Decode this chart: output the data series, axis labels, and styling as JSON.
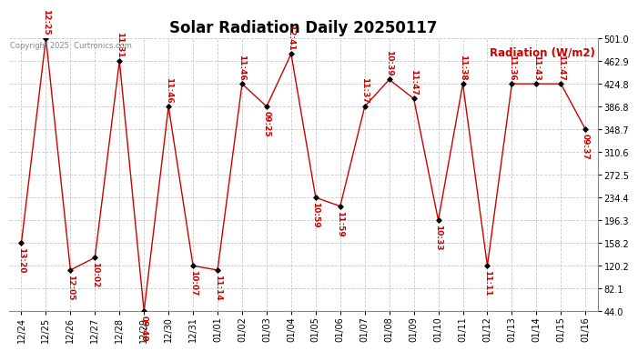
{
  "title": "Solar Radiation Daily 20250117",
  "copyright": "Copyright 2025  Curtronics.com",
  "ylabel": "Radiation (W/m2)",
  "ylim": [
    44.0,
    501.0
  ],
  "yticks": [
    44.0,
    82.1,
    120.2,
    158.2,
    196.3,
    234.4,
    272.5,
    310.6,
    348.7,
    386.8,
    424.8,
    462.9,
    501.0
  ],
  "background_color": "#ffffff",
  "grid_color": "#bbbbbb",
  "line_color": "#cc0000",
  "point_color": "#000000",
  "label_color": "#cc0000",
  "dates": [
    "12/24",
    "12/25",
    "12/26",
    "12/27",
    "12/28",
    "12/29",
    "12/30",
    "12/31",
    "01/01",
    "01/02",
    "01/03",
    "01/04",
    "01/05",
    "01/06",
    "01/07",
    "01/08",
    "01/09",
    "01/10",
    "01/11",
    "01/12",
    "01/13",
    "01/14",
    "01/15",
    "01/16"
  ],
  "values": [
    158.2,
    501.0,
    113.0,
    134.0,
    462.9,
    44.0,
    386.8,
    120.2,
    113.0,
    424.8,
    386.8,
    475.0,
    234.4,
    220.0,
    386.8,
    432.0,
    400.0,
    196.3,
    424.8,
    120.2,
    424.8,
    424.8,
    424.8,
    348.7
  ],
  "labels": [
    "13:20",
    "12:25",
    "12:05",
    "10:02",
    "11:31",
    "09:48",
    "11:46",
    "10:07",
    "11:14",
    "11:46",
    "09:25",
    "12:41",
    "10:59",
    "11:59",
    "11:37",
    "10:39",
    "11:47",
    "10:33",
    "11:38",
    "11:11",
    "11:36",
    "11:43",
    "11:47",
    "09:37"
  ],
  "label_above": [
    false,
    true,
    false,
    false,
    true,
    false,
    true,
    false,
    false,
    true,
    false,
    true,
    false,
    false,
    true,
    true,
    true,
    false,
    true,
    false,
    true,
    true,
    true,
    false
  ],
  "title_fontsize": 12,
  "label_fontsize": 6.5,
  "tick_fontsize": 7,
  "ylabel_fontsize": 8.5,
  "figwidth": 6.9,
  "figheight": 3.75,
  "dpi": 100
}
